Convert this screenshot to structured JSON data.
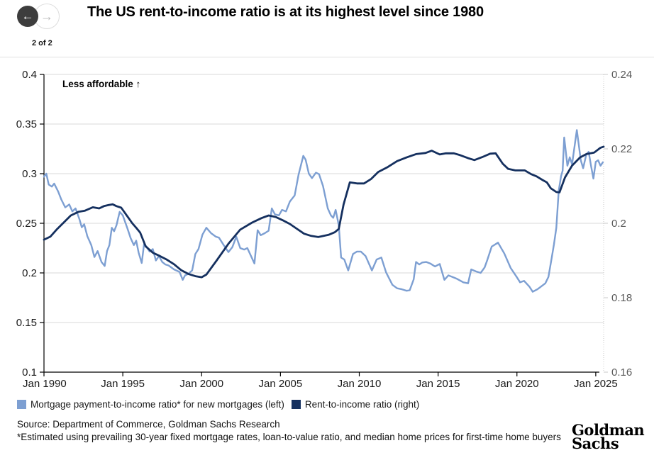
{
  "nav": {
    "back_icon": "←",
    "forward_icon": "→",
    "page_indicator": "2 of 2"
  },
  "title": "The US rent-to-income ratio is at its highest level since 1980",
  "chart_data": {
    "type": "line",
    "title": "The US rent-to-income ratio is at its highest level since 1980",
    "annotation": "Less affordable ↑",
    "grid": true,
    "legend_position": "bottom",
    "x_axis": {
      "range": [
        1990,
        2025.5
      ],
      "tick_years": [
        1990,
        1995,
        2000,
        2005,
        2010,
        2015,
        2020,
        2025
      ],
      "tick_labels": [
        "Jan 1990",
        "Jan 1995",
        "Jan 2000",
        "Jan 2005",
        "Jan 2010",
        "Jan 2015",
        "Jan 2020",
        "Jan 2025"
      ]
    },
    "left_axis": {
      "range": [
        0.1,
        0.4
      ],
      "ticks": [
        0.4,
        0.35,
        0.3,
        0.25,
        0.2,
        0.15,
        0.1
      ],
      "labels": [
        "0.4",
        "0.35",
        "0.3",
        "0.25",
        "0.2",
        "0.15",
        "0.1"
      ]
    },
    "right_axis": {
      "range": [
        0.16,
        0.24
      ],
      "ticks": [
        0.24,
        0.22,
        0.2,
        0.18,
        0.16
      ],
      "labels": [
        "0.24",
        "0.22",
        "0.2",
        "0.18",
        "0.16"
      ]
    },
    "series": [
      {
        "name": "Mortgage payment-to-income ratio* for new mortgages (left)",
        "axis": "left",
        "color": "#7d9fd2",
        "width": 2.4,
        "points": [
          [
            1990.0,
            0.297
          ],
          [
            1990.15,
            0.3
          ],
          [
            1990.3,
            0.289
          ],
          [
            1990.5,
            0.287
          ],
          [
            1990.65,
            0.29
          ],
          [
            1990.9,
            0.282
          ],
          [
            1991.1,
            0.274
          ],
          [
            1991.35,
            0.266
          ],
          [
            1991.6,
            0.269
          ],
          [
            1991.8,
            0.262
          ],
          [
            1992.0,
            0.265
          ],
          [
            1992.25,
            0.254
          ],
          [
            1992.4,
            0.246
          ],
          [
            1992.55,
            0.249
          ],
          [
            1992.75,
            0.237
          ],
          [
            1993.0,
            0.228
          ],
          [
            1993.2,
            0.216
          ],
          [
            1993.4,
            0.222
          ],
          [
            1993.65,
            0.211
          ],
          [
            1993.85,
            0.207
          ],
          [
            1994.0,
            0.222
          ],
          [
            1994.15,
            0.228
          ],
          [
            1994.3,
            0.2455
          ],
          [
            1994.45,
            0.242
          ],
          [
            1994.6,
            0.248
          ],
          [
            1994.8,
            0.2615
          ],
          [
            1995.0,
            0.258
          ],
          [
            1995.3,
            0.2445
          ],
          [
            1995.5,
            0.235
          ],
          [
            1995.7,
            0.228
          ],
          [
            1995.85,
            0.2325
          ],
          [
            1996.0,
            0.2205
          ],
          [
            1996.2,
            0.21
          ],
          [
            1996.35,
            0.229
          ],
          [
            1996.5,
            0.2265
          ],
          [
            1996.7,
            0.2215
          ],
          [
            1996.9,
            0.224
          ],
          [
            1997.1,
            0.2125
          ],
          [
            1997.3,
            0.217
          ],
          [
            1997.5,
            0.211
          ],
          [
            1997.7,
            0.2085
          ],
          [
            1997.9,
            0.2075
          ],
          [
            1998.25,
            0.2035
          ],
          [
            1998.6,
            0.201
          ],
          [
            1998.8,
            0.193
          ],
          [
            1998.95,
            0.1975
          ],
          [
            1999.15,
            0.199
          ],
          [
            1999.4,
            0.2025
          ],
          [
            1999.6,
            0.219
          ],
          [
            1999.8,
            0.224
          ],
          [
            2000.05,
            0.2385
          ],
          [
            2000.3,
            0.2455
          ],
          [
            2000.6,
            0.24
          ],
          [
            2000.9,
            0.2365
          ],
          [
            2001.1,
            0.2355
          ],
          [
            2001.4,
            0.228
          ],
          [
            2001.7,
            0.221
          ],
          [
            2001.95,
            0.226
          ],
          [
            2002.2,
            0.2365
          ],
          [
            2002.45,
            0.225
          ],
          [
            2002.7,
            0.2235
          ],
          [
            2002.9,
            0.225
          ],
          [
            2003.1,
            0.218
          ],
          [
            2003.35,
            0.2095
          ],
          [
            2003.55,
            0.243
          ],
          [
            2003.75,
            0.238
          ],
          [
            2004.0,
            0.24
          ],
          [
            2004.25,
            0.2425
          ],
          [
            2004.45,
            0.265
          ],
          [
            2004.65,
            0.259
          ],
          [
            2004.9,
            0.258
          ],
          [
            2005.1,
            0.2635
          ],
          [
            2005.35,
            0.262
          ],
          [
            2005.6,
            0.272
          ],
          [
            2005.9,
            0.278
          ],
          [
            2006.15,
            0.299
          ],
          [
            2006.45,
            0.318
          ],
          [
            2006.6,
            0.314
          ],
          [
            2006.8,
            0.3
          ],
          [
            2007.0,
            0.2955
          ],
          [
            2007.25,
            0.301
          ],
          [
            2007.45,
            0.2995
          ],
          [
            2007.7,
            0.2875
          ],
          [
            2008.0,
            0.265
          ],
          [
            2008.2,
            0.258
          ],
          [
            2008.35,
            0.2555
          ],
          [
            2008.5,
            0.2635
          ],
          [
            2008.7,
            0.248
          ],
          [
            2008.85,
            0.2155
          ],
          [
            2009.05,
            0.2135
          ],
          [
            2009.3,
            0.2025
          ],
          [
            2009.6,
            0.219
          ],
          [
            2009.85,
            0.2215
          ],
          [
            2010.1,
            0.2215
          ],
          [
            2010.4,
            0.217
          ],
          [
            2010.8,
            0.2025
          ],
          [
            2011.1,
            0.2135
          ],
          [
            2011.4,
            0.2155
          ],
          [
            2011.7,
            0.2005
          ],
          [
            2012.1,
            0.188
          ],
          [
            2012.4,
            0.1845
          ],
          [
            2012.7,
            0.1835
          ],
          [
            2013.0,
            0.182
          ],
          [
            2013.2,
            0.1825
          ],
          [
            2013.45,
            0.1935
          ],
          [
            2013.6,
            0.211
          ],
          [
            2013.8,
            0.2085
          ],
          [
            2014.0,
            0.2105
          ],
          [
            2014.25,
            0.211
          ],
          [
            2014.5,
            0.2095
          ],
          [
            2014.8,
            0.2065
          ],
          [
            2015.1,
            0.209
          ],
          [
            2015.4,
            0.193
          ],
          [
            2015.65,
            0.1975
          ],
          [
            2015.9,
            0.196
          ],
          [
            2016.2,
            0.194
          ],
          [
            2016.6,
            0.1905
          ],
          [
            2016.9,
            0.1895
          ],
          [
            2017.1,
            0.2035
          ],
          [
            2017.4,
            0.2015
          ],
          [
            2017.7,
            0.2
          ],
          [
            2017.95,
            0.2055
          ],
          [
            2018.1,
            0.212
          ],
          [
            2018.4,
            0.2265
          ],
          [
            2018.8,
            0.2305
          ],
          [
            2019.2,
            0.2195
          ],
          [
            2019.6,
            0.205
          ],
          [
            2020.0,
            0.1955
          ],
          [
            2020.2,
            0.1905
          ],
          [
            2020.45,
            0.192
          ],
          [
            2020.8,
            0.186
          ],
          [
            2021.0,
            0.181
          ],
          [
            2021.3,
            0.1835
          ],
          [
            2021.55,
            0.1865
          ],
          [
            2021.8,
            0.1895
          ],
          [
            2022.0,
            0.196
          ],
          [
            2022.2,
            0.2148
          ],
          [
            2022.35,
            0.229
          ],
          [
            2022.5,
            0.2455
          ],
          [
            2022.65,
            0.283
          ],
          [
            2022.8,
            0.2975
          ],
          [
            2022.9,
            0.303
          ],
          [
            2023.0,
            0.3365
          ],
          [
            2023.2,
            0.308
          ],
          [
            2023.35,
            0.3165
          ],
          [
            2023.5,
            0.3095
          ],
          [
            2023.8,
            0.344
          ],
          [
            2024.05,
            0.3135
          ],
          [
            2024.2,
            0.3055
          ],
          [
            2024.4,
            0.3195
          ],
          [
            2024.55,
            0.322
          ],
          [
            2024.7,
            0.308
          ],
          [
            2024.85,
            0.295
          ],
          [
            2025.0,
            0.312
          ],
          [
            2025.15,
            0.3135
          ],
          [
            2025.3,
            0.308
          ],
          [
            2025.45,
            0.3115
          ]
        ]
      },
      {
        "name": "Rent-to-income ratio (right)",
        "axis": "right",
        "color": "#15305f",
        "width": 2.8,
        "points": [
          [
            1990.0,
            0.1956
          ],
          [
            1990.4,
            0.1964
          ],
          [
            1990.8,
            0.1983
          ],
          [
            1991.3,
            0.2004
          ],
          [
            1991.7,
            0.2021
          ],
          [
            1992.2,
            0.2031
          ],
          [
            1992.6,
            0.2034
          ],
          [
            1993.1,
            0.2043
          ],
          [
            1993.5,
            0.204
          ],
          [
            1993.8,
            0.2046
          ],
          [
            1994.1,
            0.2049
          ],
          [
            1994.35,
            0.2051
          ],
          [
            1994.6,
            0.2046
          ],
          [
            1994.9,
            0.2042
          ],
          [
            1995.1,
            0.203
          ],
          [
            1995.35,
            0.2015
          ],
          [
            1995.6,
            0.2
          ],
          [
            1995.85,
            0.1988
          ],
          [
            1996.1,
            0.1975
          ],
          [
            1996.45,
            0.1938
          ],
          [
            1996.9,
            0.1921
          ],
          [
            1997.35,
            0.1912
          ],
          [
            1997.8,
            0.1902
          ],
          [
            1998.25,
            0.189
          ],
          [
            1998.7,
            0.1874
          ],
          [
            1999.15,
            0.1864
          ],
          [
            1999.6,
            0.1858
          ],
          [
            2000.0,
            0.1855
          ],
          [
            2000.3,
            0.1862
          ],
          [
            2000.95,
            0.19
          ],
          [
            2001.7,
            0.1945
          ],
          [
            2002.45,
            0.1983
          ],
          [
            2003.2,
            0.2002
          ],
          [
            2003.8,
            0.2014
          ],
          [
            2004.25,
            0.2021
          ],
          [
            2004.7,
            0.2017
          ],
          [
            2005.15,
            0.2008
          ],
          [
            2005.6,
            0.1998
          ],
          [
            2006.05,
            0.1985
          ],
          [
            2006.5,
            0.1972
          ],
          [
            2006.95,
            0.1966
          ],
          [
            2007.4,
            0.1963
          ],
          [
            2008.05,
            0.1969
          ],
          [
            2008.45,
            0.1976
          ],
          [
            2008.7,
            0.1985
          ],
          [
            2009.0,
            0.205
          ],
          [
            2009.4,
            0.211
          ],
          [
            2009.85,
            0.2107
          ],
          [
            2010.3,
            0.2107
          ],
          [
            2010.75,
            0.2119
          ],
          [
            2011.2,
            0.2138
          ],
          [
            2011.8,
            0.2151
          ],
          [
            2012.4,
            0.2167
          ],
          [
            2013.0,
            0.2177
          ],
          [
            2013.6,
            0.2186
          ],
          [
            2014.2,
            0.2189
          ],
          [
            2014.6,
            0.2195
          ],
          [
            2015.1,
            0.2185
          ],
          [
            2015.5,
            0.2188
          ],
          [
            2016.0,
            0.2188
          ],
          [
            2016.4,
            0.2183
          ],
          [
            2016.9,
            0.2175
          ],
          [
            2017.3,
            0.217
          ],
          [
            2017.8,
            0.2178
          ],
          [
            2018.3,
            0.2187
          ],
          [
            2018.65,
            0.2188
          ],
          [
            2019.1,
            0.216
          ],
          [
            2019.45,
            0.2146
          ],
          [
            2019.9,
            0.2142
          ],
          [
            2020.5,
            0.2142
          ],
          [
            2020.9,
            0.2132
          ],
          [
            2021.25,
            0.2126
          ],
          [
            2021.6,
            0.2117
          ],
          [
            2021.9,
            0.211
          ],
          [
            2022.15,
            0.2094
          ],
          [
            2022.5,
            0.2084
          ],
          [
            2022.7,
            0.2083
          ],
          [
            2023.05,
            0.2123
          ],
          [
            2023.5,
            0.2155
          ],
          [
            2024.0,
            0.2177
          ],
          [
            2024.4,
            0.2186
          ],
          [
            2024.9,
            0.219
          ],
          [
            2025.3,
            0.2203
          ],
          [
            2025.5,
            0.2206
          ]
        ]
      }
    ]
  },
  "footer": {
    "source_line": "Source: Department of Commerce, Goldman Sachs Research",
    "footnote": "*Estimated using prevailing 30-year fixed mortgage rates, loan-to-value ratio, and median home prices for first-time home buyers"
  },
  "logo": {
    "line1": "Goldman",
    "line2": "Sachs"
  },
  "colors": {
    "mortgage_line": "#7d9fd2",
    "rent_line": "#15305f",
    "grid": "#d9d9d9",
    "axis": "#000000",
    "right_axis_text": "#595959",
    "nav_back_bg": "#3d3d3d"
  }
}
